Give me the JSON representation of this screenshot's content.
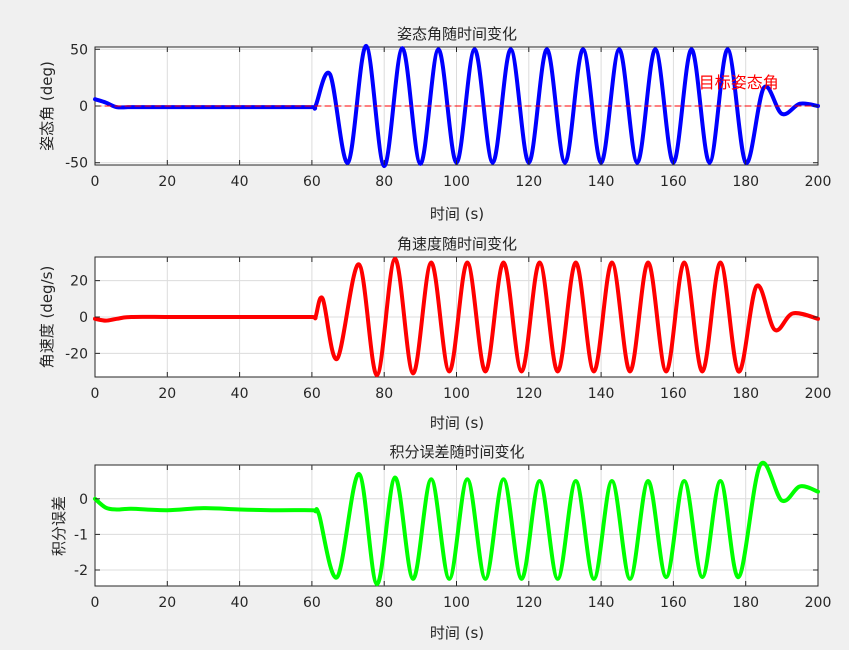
{
  "chart_data": [
    {
      "type": "line",
      "title": "姿态角随时间变化",
      "xlabel": "时间 (s)",
      "ylabel": "姿态角 (deg)",
      "xlim": [
        0,
        200
      ],
      "ylim": [
        -52,
        52
      ],
      "xticks": [
        0,
        20,
        40,
        60,
        80,
        100,
        120,
        140,
        160,
        180,
        200
      ],
      "yticks": [
        -50,
        0,
        50
      ],
      "grid": true,
      "series": [
        {
          "color": "#0000ff",
          "style": "solid",
          "x": [
            0,
            3,
            6,
            10,
            20,
            30,
            40,
            50,
            60,
            61,
            65,
            70,
            75,
            80,
            85,
            90,
            95,
            100,
            105,
            110,
            115,
            120,
            125,
            130,
            135,
            140,
            145,
            150,
            155,
            160,
            165,
            170,
            175,
            180,
            185,
            190,
            195,
            200
          ],
          "y": [
            6,
            3,
            -1,
            -1,
            -1,
            -1,
            -1,
            -1,
            -1,
            0,
            28,
            -50,
            53,
            -53,
            51,
            -51,
            50,
            -50,
            50,
            -50,
            50,
            -50,
            50,
            -50,
            50,
            -50,
            50,
            -50,
            50,
            -50,
            50,
            -50,
            50,
            -50,
            16,
            -7,
            2,
            0
          ]
        },
        {
          "color": "#ff0000",
          "style": "dashed",
          "x": [
            0,
            200
          ],
          "y": [
            0,
            0
          ]
        }
      ],
      "annotations": [
        {
          "text": "目标姿态角",
          "x": 167,
          "y": 16,
          "color": "#ff0000"
        }
      ]
    },
    {
      "type": "line",
      "title": "角速度随时间变化",
      "xlabel": "时间 (s)",
      "ylabel": "角速度 (deg/s)",
      "xlim": [
        0,
        200
      ],
      "ylim": [
        -33,
        33
      ],
      "xticks": [
        0,
        20,
        40,
        60,
        80,
        100,
        120,
        140,
        160,
        180,
        200
      ],
      "yticks": [
        -20,
        0,
        20
      ],
      "grid": true,
      "series": [
        {
          "color": "#ff0000",
          "style": "solid",
          "x": [
            0,
            3,
            6,
            10,
            20,
            30,
            40,
            50,
            60,
            61,
            63,
            67,
            73,
            78,
            83,
            88,
            93,
            98,
            103,
            108,
            113,
            118,
            123,
            128,
            133,
            138,
            143,
            148,
            153,
            158,
            163,
            168,
            173,
            178,
            183,
            188,
            193,
            200
          ],
          "y": [
            -1,
            -2,
            -1,
            0,
            0,
            0,
            0,
            0,
            0,
            0,
            10,
            -23,
            29,
            -32,
            32,
            -31,
            30,
            -30,
            30,
            -30,
            30,
            -30,
            30,
            -30,
            30,
            -30,
            30,
            -30,
            30,
            -30,
            30,
            -30,
            30,
            -30,
            17,
            -7,
            2,
            -1
          ]
        }
      ]
    },
    {
      "type": "line",
      "title": "积分误差随时间变化",
      "xlabel": "时间 (s)",
      "ylabel": "积分误差",
      "xlim": [
        0,
        200
      ],
      "ylim": [
        -2.45,
        0.95
      ],
      "xticks": [
        0,
        20,
        40,
        60,
        80,
        100,
        120,
        140,
        160,
        180,
        200
      ],
      "yticks": [
        -2,
        -1,
        0
      ],
      "grid": true,
      "series": [
        {
          "color": "#00ff00",
          "style": "solid",
          "x": [
            0,
            3,
            6,
            10,
            20,
            30,
            40,
            50,
            60,
            61,
            62,
            67,
            73,
            78,
            83,
            88,
            93,
            98,
            103,
            108,
            113,
            118,
            123,
            128,
            133,
            138,
            143,
            148,
            153,
            158,
            163,
            168,
            173,
            178,
            184,
            190,
            195,
            200
          ],
          "y": [
            0,
            -0.25,
            -0.3,
            -0.28,
            -0.32,
            -0.26,
            -0.3,
            -0.32,
            -0.32,
            -0.35,
            -0.45,
            -2.2,
            0.7,
            -2.4,
            0.6,
            -2.25,
            0.55,
            -2.25,
            0.55,
            -2.25,
            0.55,
            -2.25,
            0.5,
            -2.25,
            0.5,
            -2.25,
            0.5,
            -2.25,
            0.5,
            -2.2,
            0.5,
            -2.2,
            0.5,
            -2.2,
            0.95,
            -0.05,
            0.35,
            0.2
          ]
        }
      ]
    }
  ]
}
